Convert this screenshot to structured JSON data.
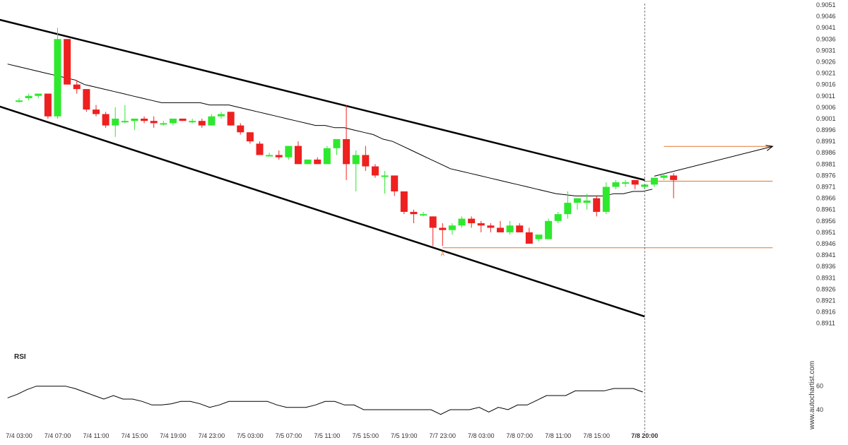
{
  "chart_data": {
    "type": "candlestick",
    "colors": {
      "up": "#2ee82e",
      "down": "#ee2020",
      "channel": "#000000",
      "ma": "#000000",
      "level": "#e07830",
      "rsi": "#000000",
      "current_divider": "#555555"
    },
    "price_axis": {
      "ylim": [
        0.8905,
        0.9051
      ],
      "ticks": [
        "0.9051",
        "0.9046",
        "0.9041",
        "0.9036",
        "0.9031",
        "0.9026",
        "0.9021",
        "0.9016",
        "0.9011",
        "0.9006",
        "0.9001",
        "0.8996",
        "0.8991",
        "0.8986",
        "0.8981",
        "0.8976",
        "0.8971",
        "0.8966",
        "0.8961",
        "0.8956",
        "0.8951",
        "0.8946",
        "0.8941",
        "0.8936",
        "0.8931",
        "0.8926",
        "0.8921",
        "0.8916",
        "0.8911"
      ]
    },
    "time_axis": {
      "bar_count": 76,
      "labels": [
        {
          "bar": 0,
          "text": "7/4 03:00"
        },
        {
          "bar": 4,
          "text": "7/4 07:00"
        },
        {
          "bar": 8,
          "text": "7/4 11:00"
        },
        {
          "bar": 12,
          "text": "7/4 15:00"
        },
        {
          "bar": 16,
          "text": "7/4 19:00"
        },
        {
          "bar": 20,
          "text": "7/4 23:00"
        },
        {
          "bar": 24,
          "text": "7/5 03:00"
        },
        {
          "bar": 28,
          "text": "7/5 07:00"
        },
        {
          "bar": 32,
          "text": "7/5 11:00"
        },
        {
          "bar": 36,
          "text": "7/5 15:00"
        },
        {
          "bar": 40,
          "text": "7/5 19:00"
        },
        {
          "bar": 44,
          "text": "7/7 23:00"
        },
        {
          "bar": 48,
          "text": "7/8 03:00"
        },
        {
          "bar": 52,
          "text": "7/8 07:00"
        },
        {
          "bar": 56,
          "text": "7/8 11:00"
        },
        {
          "bar": 60,
          "text": "7/8 15:00"
        },
        {
          "bar": 65,
          "text": "7/8 20:00",
          "bold": true
        }
      ]
    },
    "candles": [
      {
        "o": 0.90085,
        "h": 0.901,
        "l": 0.9008,
        "c": 0.9009
      },
      {
        "o": 0.901,
        "h": 0.9012,
        "l": 0.9009,
        "c": 0.9011
      },
      {
        "o": 0.9011,
        "h": 0.9012,
        "l": 0.901,
        "c": 0.9012
      },
      {
        "o": 0.9012,
        "h": 0.9012,
        "l": 0.9001,
        "c": 0.9002
      },
      {
        "o": 0.9002,
        "h": 0.9041,
        "l": 0.9001,
        "c": 0.9036
      },
      {
        "o": 0.9036,
        "h": 0.9036,
        "l": 0.9016,
        "c": 0.9016
      },
      {
        "o": 0.9016,
        "h": 0.9018,
        "l": 0.9012,
        "c": 0.9014
      },
      {
        "o": 0.9014,
        "h": 0.9014,
        "l": 0.9004,
        "c": 0.9005
      },
      {
        "o": 0.9005,
        "h": 0.9007,
        "l": 0.9002,
        "c": 0.9003
      },
      {
        "o": 0.9003,
        "h": 0.9004,
        "l": 0.8997,
        "c": 0.8998
      },
      {
        "o": 0.8998,
        "h": 0.9006,
        "l": 0.8993,
        "c": 0.9001
      },
      {
        "o": 0.9,
        "h": 0.9007,
        "l": 0.8999,
        "c": 0.9
      },
      {
        "o": 0.9,
        "h": 0.9001,
        "l": 0.8996,
        "c": 0.9001
      },
      {
        "o": 0.9001,
        "h": 0.9002,
        "l": 0.8999,
        "c": 0.9
      },
      {
        "o": 0.9,
        "h": 0.9002,
        "l": 0.8997,
        "c": 0.8999
      },
      {
        "o": 0.8999,
        "h": 0.9,
        "l": 0.8998,
        "c": 0.8999
      },
      {
        "o": 0.8999,
        "h": 0.9001,
        "l": 0.8998,
        "c": 0.9001
      },
      {
        "o": 0.9001,
        "h": 0.9001,
        "l": 0.9,
        "c": 0.9
      },
      {
        "o": 0.9,
        "h": 0.9001,
        "l": 0.8999,
        "c": 0.9
      },
      {
        "o": 0.9,
        "h": 0.9001,
        "l": 0.8997,
        "c": 0.8998
      },
      {
        "o": 0.8998,
        "h": 0.9003,
        "l": 0.8998,
        "c": 0.9002
      },
      {
        "o": 0.9002,
        "h": 0.9004,
        "l": 0.9001,
        "c": 0.9003
      },
      {
        "o": 0.9004,
        "h": 0.9004,
        "l": 0.8998,
        "c": 0.8998
      },
      {
        "o": 0.8998,
        "h": 0.8999,
        "l": 0.8994,
        "c": 0.8995
      },
      {
        "o": 0.8995,
        "h": 0.8995,
        "l": 0.899,
        "c": 0.8991
      },
      {
        "o": 0.899,
        "h": 0.8991,
        "l": 0.8985,
        "c": 0.8985
      },
      {
        "o": 0.8985,
        "h": 0.8986,
        "l": 0.8985,
        "c": 0.8985
      },
      {
        "o": 0.8985,
        "h": 0.8987,
        "l": 0.8983,
        "c": 0.8984
      },
      {
        "o": 0.8984,
        "h": 0.8989,
        "l": 0.8983,
        "c": 0.8989
      },
      {
        "o": 0.8989,
        "h": 0.8991,
        "l": 0.8981,
        "c": 0.8981
      },
      {
        "o": 0.8981,
        "h": 0.8983,
        "l": 0.8981,
        "c": 0.8983
      },
      {
        "o": 0.8983,
        "h": 0.8984,
        "l": 0.8981,
        "c": 0.8981
      },
      {
        "o": 0.8981,
        "h": 0.8989,
        "l": 0.8981,
        "c": 0.8988
      },
      {
        "o": 0.8988,
        "h": 0.8992,
        "l": 0.8985,
        "c": 0.8992
      },
      {
        "o": 0.8992,
        "h": 0.9007,
        "l": 0.8974,
        "c": 0.8981
      },
      {
        "o": 0.8981,
        "h": 0.8987,
        "l": 0.8969,
        "c": 0.8985
      },
      {
        "o": 0.8985,
        "h": 0.8989,
        "l": 0.8978,
        "c": 0.898
      },
      {
        "o": 0.898,
        "h": 0.8981,
        "l": 0.8975,
        "c": 0.8976
      },
      {
        "o": 0.8976,
        "h": 0.8978,
        "l": 0.8968,
        "c": 0.8976
      },
      {
        "o": 0.8976,
        "h": 0.8976,
        "l": 0.8967,
        "c": 0.8969
      },
      {
        "o": 0.8969,
        "h": 0.8969,
        "l": 0.8959,
        "c": 0.896
      },
      {
        "o": 0.896,
        "h": 0.8961,
        "l": 0.8955,
        "c": 0.8959
      },
      {
        "o": 0.8959,
        "h": 0.896,
        "l": 0.8958,
        "c": 0.8959
      },
      {
        "o": 0.8958,
        "h": 0.8958,
        "l": 0.8945,
        "c": 0.8953
      },
      {
        "o": 0.8953,
        "h": 0.8955,
        "l": 0.8945,
        "c": 0.8952
      },
      {
        "o": 0.8952,
        "h": 0.8955,
        "l": 0.895,
        "c": 0.8954
      },
      {
        "o": 0.8954,
        "h": 0.8958,
        "l": 0.8953,
        "c": 0.8957
      },
      {
        "o": 0.8957,
        "h": 0.8958,
        "l": 0.8953,
        "c": 0.8955
      },
      {
        "o": 0.8955,
        "h": 0.8956,
        "l": 0.8951,
        "c": 0.8954
      },
      {
        "o": 0.8954,
        "h": 0.8955,
        "l": 0.8951,
        "c": 0.8953
      },
      {
        "o": 0.8953,
        "h": 0.8956,
        "l": 0.8951,
        "c": 0.8951
      },
      {
        "o": 0.8951,
        "h": 0.8956,
        "l": 0.895,
        "c": 0.8954
      },
      {
        "o": 0.8954,
        "h": 0.8955,
        "l": 0.8951,
        "c": 0.8951
      },
      {
        "o": 0.8951,
        "h": 0.8953,
        "l": 0.8946,
        "c": 0.8946
      },
      {
        "o": 0.8948,
        "h": 0.895,
        "l": 0.8947,
        "c": 0.895
      },
      {
        "o": 0.8948,
        "h": 0.8957,
        "l": 0.8948,
        "c": 0.8956
      },
      {
        "o": 0.8956,
        "h": 0.896,
        "l": 0.8955,
        "c": 0.8959
      },
      {
        "o": 0.8959,
        "h": 0.8969,
        "l": 0.8957,
        "c": 0.8964
      },
      {
        "o": 0.8964,
        "h": 0.8966,
        "l": 0.8961,
        "c": 0.8966
      },
      {
        "o": 0.8964,
        "h": 0.8968,
        "l": 0.8961,
        "c": 0.8965
      },
      {
        "o": 0.8966,
        "h": 0.8967,
        "l": 0.8958,
        "c": 0.896
      },
      {
        "o": 0.896,
        "h": 0.8973,
        "l": 0.8959,
        "c": 0.8971
      },
      {
        "o": 0.8971,
        "h": 0.8974,
        "l": 0.897,
        "c": 0.8973
      },
      {
        "o": 0.8973,
        "h": 0.8974,
        "l": 0.8971,
        "c": 0.8973
      },
      {
        "o": 0.8974,
        "h": 0.8974,
        "l": 0.897,
        "c": 0.8972
      },
      {
        "o": 0.8971,
        "h": 0.8972,
        "l": 0.897,
        "c": 0.8972
      },
      {
        "o": 0.8972,
        "h": 0.8975,
        "l": 0.8971,
        "c": 0.8975
      },
      {
        "o": 0.8975,
        "h": 0.8977,
        "l": 0.8974,
        "c": 0.8976
      },
      {
        "o": 0.8976,
        "h": 0.8977,
        "l": 0.8966,
        "c": 0.8974
      }
    ],
    "moving_average": [
      0.9025,
      0.9024,
      0.9023,
      0.9022,
      0.9021,
      0.902,
      0.9019,
      0.9018,
      0.9016,
      0.9015,
      0.9014,
      0.9013,
      0.9012,
      0.9011,
      0.901,
      0.9009,
      0.9008,
      0.9008,
      0.9008,
      0.9008,
      0.9008,
      0.9007,
      0.9007,
      0.9007,
      0.9006,
      0.9005,
      0.9004,
      0.9003,
      0.9002,
      0.9001,
      0.9,
      0.8999,
      0.8998,
      0.8998,
      0.8997,
      0.8997,
      0.8996,
      0.8995,
      0.8994,
      0.8992,
      0.8991,
      0.8989,
      0.8987,
      0.8985,
      0.8983,
      0.8981,
      0.8979,
      0.8978,
      0.8977,
      0.8976,
      0.8975,
      0.8974,
      0.8973,
      0.8972,
      0.8971,
      0.897,
      0.8969,
      0.8968,
      0.89675,
      0.8967,
      0.8967,
      0.8967,
      0.8967,
      0.8968,
      0.8968,
      0.8969,
      0.8969,
      0.897
    ],
    "trend_lines": [
      {
        "name": "channel-upper",
        "from": {
          "bar": -2.5,
          "price": 0.9045
        },
        "to": {
          "bar": 65,
          "price": 0.8974
        }
      },
      {
        "name": "channel-lower",
        "from": {
          "bar": -2.5,
          "price": 0.9007
        },
        "to": {
          "bar": 65,
          "price": 0.8914
        }
      }
    ],
    "levels": [
      {
        "name": "resistance-level",
        "price": 0.89735,
        "from_bar": 65,
        "to_bar": 78
      },
      {
        "name": "support-level",
        "price": 0.89442,
        "from_bar": 44,
        "to_bar": 78
      },
      {
        "name": "target-level",
        "price": 0.89888,
        "from_bar": 67,
        "to_bar": 78
      }
    ],
    "target_arrow": {
      "from": {
        "bar": 66,
        "price": 0.89757
      },
      "to": {
        "bar": 78,
        "price": 0.89888
      }
    },
    "pattern_point": {
      "label": "A",
      "bar": 44,
      "price": 0.8943
    },
    "current_bar": 65,
    "rsi": {
      "label": "RSI",
      "ticks": [
        "60",
        "40"
      ],
      "ylim": [
        28,
        76
      ],
      "values": [
        50,
        53,
        57,
        60,
        60,
        60,
        60,
        58,
        55,
        52,
        49,
        52,
        49,
        49,
        47,
        44,
        44,
        45,
        47,
        47,
        45,
        42,
        44,
        47,
        47,
        47,
        47,
        47,
        44,
        42,
        42,
        42,
        44,
        47,
        47,
        44,
        44,
        40,
        40,
        40,
        40,
        40,
        40,
        40,
        40,
        36,
        40,
        40,
        40,
        42,
        38,
        42,
        40,
        44,
        44,
        48,
        52,
        52,
        52,
        56,
        56,
        56,
        56,
        58,
        58,
        58,
        55
      ]
    }
  },
  "branding": {
    "watermark": "www.autochartist.com"
  }
}
